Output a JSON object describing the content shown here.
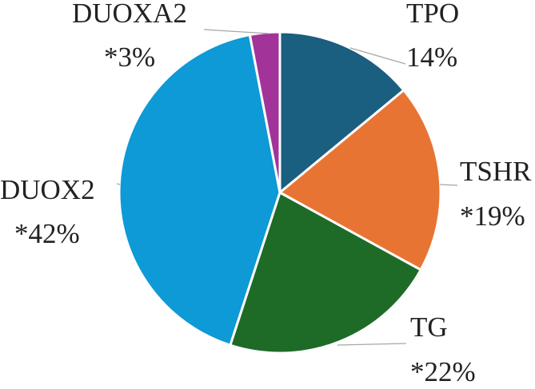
{
  "chart_data": {
    "type": "pie",
    "slices": [
      {
        "name": "TPO",
        "value": 14,
        "label_line1": "TPO",
        "label_line2": "14%",
        "color": "#1a5e80"
      },
      {
        "name": "TSHR",
        "value": 19,
        "label_line1": "TSHR",
        "label_line2": "*19%",
        "color": "#e87433"
      },
      {
        "name": "TG",
        "value": 22,
        "label_line1": "TG",
        "label_line2": "*22%",
        "color": "#1e6b27"
      },
      {
        "name": "DUOX2",
        "value": 42,
        "label_line1": "DUOX2",
        "label_line2": "*42%",
        "color": "#0d9ad6"
      },
      {
        "name": "DUOXA2",
        "value": 3,
        "label_line1": "DUOXA2",
        "label_line2": "*3%",
        "color": "#a23499"
      }
    ]
  }
}
